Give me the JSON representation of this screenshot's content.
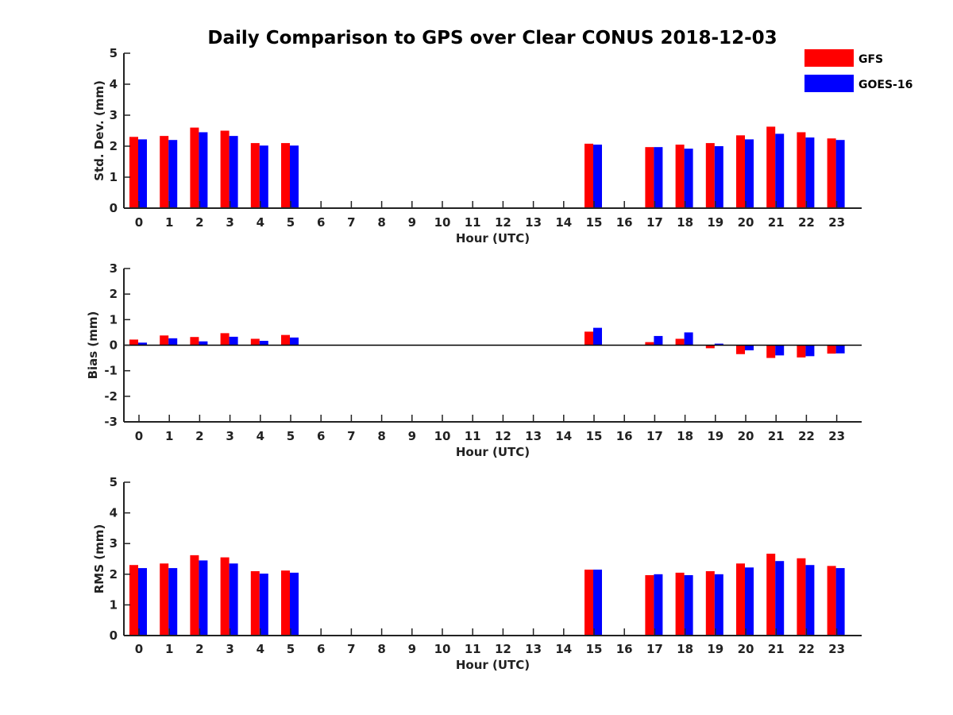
{
  "chart_data": {
    "type": "bar",
    "title": "Daily Comparison to GPS over Clear CONUS 2018-12-03",
    "legend": {
      "placement": "top-right",
      "entries": [
        {
          "name": "GFS",
          "color": "#ff0000"
        },
        {
          "name": "GOES-16",
          "color": "#0000ff"
        }
      ]
    },
    "categories": [
      "0",
      "1",
      "2",
      "3",
      "4",
      "5",
      "6",
      "7",
      "8",
      "9",
      "10",
      "11",
      "12",
      "13",
      "14",
      "15",
      "16",
      "17",
      "18",
      "19",
      "20",
      "21",
      "22",
      "23"
    ],
    "panels": [
      {
        "id": "stddev",
        "ylabel": "Std. Dev. (mm)",
        "xlabel": "Hour (UTC)",
        "ylim": [
          0,
          5
        ],
        "yticks": [
          "0",
          "1",
          "2",
          "3",
          "4",
          "5"
        ],
        "series": [
          {
            "name": "GFS",
            "values": [
              2.3,
              2.33,
              2.6,
              2.5,
              2.1,
              2.1,
              null,
              null,
              null,
              null,
              null,
              null,
              null,
              null,
              null,
              2.08,
              null,
              1.97,
              2.05,
              2.1,
              2.35,
              2.63,
              2.45,
              2.25
            ]
          },
          {
            "name": "GOES-16",
            "values": [
              2.22,
              2.2,
              2.45,
              2.33,
              2.02,
              2.02,
              null,
              null,
              null,
              null,
              null,
              null,
              null,
              null,
              null,
              2.05,
              null,
              1.97,
              1.92,
              2.0,
              2.22,
              2.4,
              2.28,
              2.2
            ]
          }
        ]
      },
      {
        "id": "bias",
        "ylabel": "Bias (mm)",
        "xlabel": "Hour (UTC)",
        "ylim": [
          -3,
          3
        ],
        "yticks": [
          "-3",
          "-2",
          "-1",
          "0",
          "1",
          "2",
          "3"
        ],
        "zero_line": true,
        "series": [
          {
            "name": "GFS",
            "values": [
              0.22,
              0.38,
              0.32,
              0.47,
              0.25,
              0.4,
              null,
              null,
              null,
              null,
              null,
              null,
              null,
              null,
              null,
              0.53,
              null,
              0.12,
              0.25,
              -0.12,
              -0.35,
              -0.5,
              -0.48,
              -0.33
            ]
          },
          {
            "name": "GOES-16",
            "values": [
              0.1,
              0.27,
              0.15,
              0.33,
              0.17,
              0.3,
              null,
              null,
              null,
              null,
              null,
              null,
              null,
              null,
              null,
              0.68,
              null,
              0.36,
              0.5,
              0.06,
              -0.2,
              -0.4,
              -0.43,
              -0.32
            ]
          }
        ]
      },
      {
        "id": "rms",
        "ylabel": "RMS (mm)",
        "xlabel": "Hour (UTC)",
        "ylim": [
          0,
          5
        ],
        "yticks": [
          "0",
          "1",
          "2",
          "3",
          "4",
          "5"
        ],
        "series": [
          {
            "name": "GFS",
            "values": [
              2.3,
              2.35,
              2.62,
              2.55,
              2.1,
              2.12,
              null,
              null,
              null,
              null,
              null,
              null,
              null,
              null,
              null,
              2.15,
              null,
              1.97,
              2.05,
              2.1,
              2.35,
              2.67,
              2.52,
              2.27
            ]
          },
          {
            "name": "GOES-16",
            "values": [
              2.2,
              2.2,
              2.45,
              2.35,
              2.02,
              2.05,
              null,
              null,
              null,
              null,
              null,
              null,
              null,
              null,
              null,
              2.15,
              null,
              2.0,
              1.97,
              2.0,
              2.22,
              2.43,
              2.3,
              2.2
            ]
          }
        ]
      }
    ]
  }
}
